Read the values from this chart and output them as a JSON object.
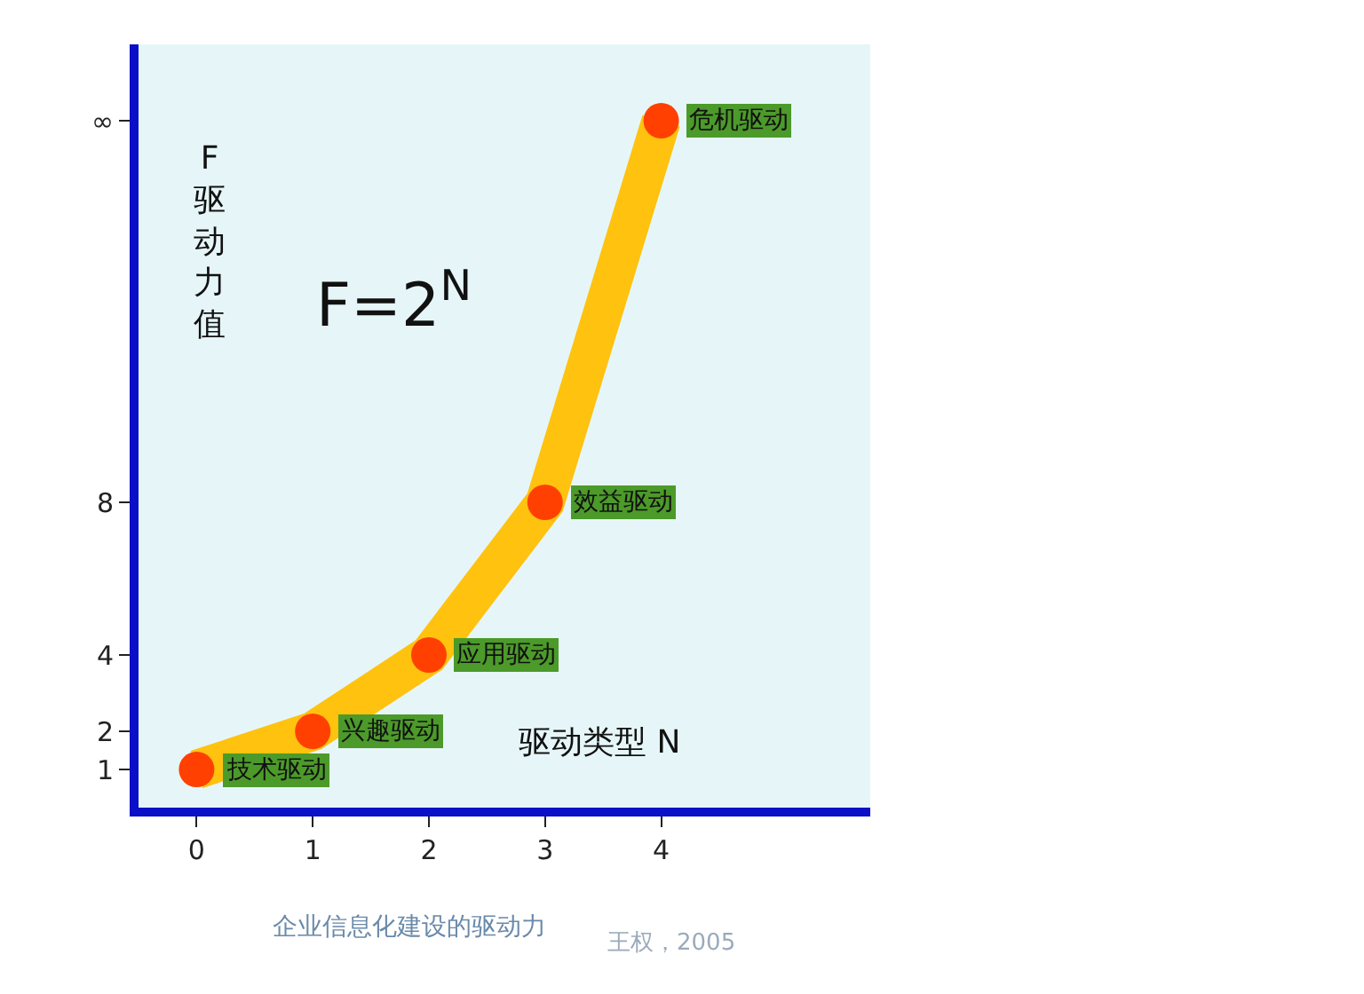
{
  "chart_data": {
    "type": "line",
    "title": "企业信息化建设的驱动力",
    "xlabel": "驱动类型 N",
    "ylabel": "F 驱动力值",
    "x": [
      0,
      1,
      2,
      3,
      4
    ],
    "series": [
      {
        "color": "#ffc20e",
        "marker": "none",
        "values": [
          1,
          2,
          4,
          8,
          18
        ]
      },
      {
        "type": "scatter",
        "marker": "circle",
        "color": "#ff4000",
        "values": [
          1,
          2,
          4,
          8,
          18
        ]
      }
    ],
    "xlim": [
      -0.5,
      5.8
    ],
    "ylim": [
      0,
      20
    ],
    "xticks": [
      0,
      1,
      2,
      3,
      4
    ],
    "yticks": [
      1,
      2,
      4,
      8,
      {
        "value": 18,
        "label": "∞"
      }
    ],
    "annotations": [
      {
        "text": "技术驱动",
        "x": 0,
        "y": 1
      },
      {
        "text": "兴趣驱动",
        "x": 1,
        "y": 2
      },
      {
        "text": "应用驱动",
        "x": 2,
        "y": 4
      },
      {
        "text": "效益驱动",
        "x": 3,
        "y": 8
      },
      {
        "text": "危机驱动",
        "x": 4,
        "y": 18
      },
      "F=2$^{N}$",
      "王权，2005"
    ],
    "grid": false,
    "legend": false
  }
}
